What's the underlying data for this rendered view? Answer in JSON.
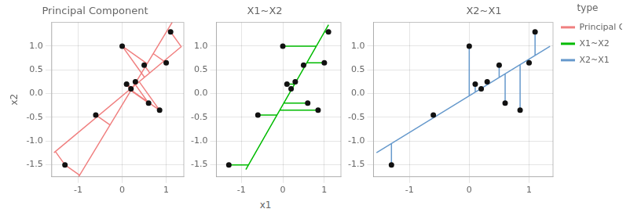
{
  "chart_data": [
    {
      "type": "scatter",
      "title": "Principal Component",
      "ylabel": "x2",
      "xlim": [
        -1.6,
        1.4
      ],
      "ylim": [
        -1.75,
        1.5
      ],
      "xticks": [
        -1,
        0,
        1
      ],
      "yticks": [
        -1.5,
        {
          "value": -1.0,
          "label": "-1.0"
        },
        -0.5,
        {
          "value": 0.0,
          "label": "0.0"
        },
        0.5,
        {
          "value": 1.0,
          "label": "1.0"
        }
      ],
      "grid": true,
      "series": [
        {
          "name": "Principal Component",
          "type": "line",
          "color": "#F08080",
          "x": [
            -1.55,
            1.35,
            null,
            -0.98801,
            1.13472,
            null,
            -1.3,
            -1.51675,
            null,
            -1.3,
            -0.96685,
            null,
            -0.6,
            -0.57039,
            null,
            -0.6,
            -0.2768,
            null,
            0,
            0.50687,
            null,
            0,
            0.56648,
            null,
            0.1,
            0.18245,
            null,
            0.1,
            0.23012,
            null,
            0.2,
            0.1967,
            null,
            0.2,
            0.21424,
            null,
            0.3,
            0.33189,
            null,
            0.3,
            0.31282,
            null,
            0.5,
            0.62647,
            null,
            0.5,
            0.53286,
            null,
            0.6,
            0.30205,
            null,
            0.6,
            0.1965,
            null,
            0.85,
            0.38604,
            null,
            0.85,
            0.20258,
            null,
            1.0,
            0.96378,
            null,
            1.0,
            0.70527,
            null,
            1.1,
            1.34087,
            null,
            1.1,
            1.03277
          ],
          "values": [
            -1.24513,
            0.99526,
            null,
            -1.75,
            1.5,
            null,
            -1.5,
            -1.21944,
            null,
            -1.5,
            -1.7176,
            null,
            -0.45,
            -0.48833,
            null,
            -0.45,
            -0.6611,
            null,
            1.0,
            0.3439,
            null,
            1.0,
            0.63,
            null,
            0.2,
            0.09327,
            null,
            0.2,
            0.11501,
            null,
            0.1,
            0.10428,
            null,
            0.1,
            0.0907,
            null,
            0.25,
            0.20872,
            null,
            0.25,
            0.24163,
            null,
            0.6,
            0.4363,
            null,
            0.6,
            0.57853,
            null,
            -0.2,
            0.18567,
            null,
            -0.2,
            0.06354,
            null,
            -0.35,
            0.25055,
            null,
            -0.35,
            0.07286,
            null,
            0.65,
            0.69688,
            null,
            0.65,
            0.8425,
            null,
            1.3,
            0.98821,
            null,
            1.3,
            1.34391
          ]
        },
        {
          "type": "scatter",
          "color": "#111111",
          "marker": "circle",
          "x": [
            -1.3,
            -0.6,
            0.0,
            0.1,
            0.2,
            0.3,
            0.5,
            0.6,
            0.85,
            1.0,
            1.1
          ],
          "values": [
            -1.5,
            -0.45,
            1.0,
            0.2,
            0.1,
            0.25,
            0.6,
            -0.2,
            -0.35,
            0.65,
            1.3
          ]
        }
      ]
    },
    {
      "type": "scatter",
      "title": "X1~X2",
      "xlabel": "x1",
      "xlim": [
        -1.6,
        1.4
      ],
      "ylim": [
        -1.75,
        1.5
      ],
      "xticks": [
        -1,
        0,
        1
      ],
      "yticks": [
        -1.5,
        {
          "value": -1.0,
          "label": "-1.0"
        },
        -0.5,
        {
          "value": 0.0,
          "label": "0.0"
        },
        0.5,
        {
          "value": 1.0,
          "label": "1.0"
        }
      ],
      "grid": true,
      "series": [
        {
          "name": "X1~X2",
          "type": "line",
          "color": "#00BB00",
          "x": [
            -0.89004,
            1.10206,
            null,
            -0.82472,
            -1.3,
            null,
            -0.13892,
            -0.6,
            null,
            0.80814,
            0,
            null,
            0.28563,
            0.1,
            null,
            0.22031,
            0.2,
            null,
            0.31828,
            0.3,
            null,
            0.54688,
            0.5,
            null,
            0.02437,
            0.6,
            null,
            -0.0736,
            0.85,
            null,
            0.57954,
            1.0,
            null,
            1.00409,
            1.1
          ],
          "values": [
            -1.6,
            1.45,
            null,
            -1.5,
            -1.5,
            null,
            -0.45,
            -0.45,
            null,
            1.0,
            1.0,
            null,
            0.2,
            0.2,
            null,
            0.1,
            0.1,
            null,
            0.25,
            0.25,
            null,
            0.6,
            0.6,
            null,
            -0.2,
            -0.2,
            null,
            -0.35,
            -0.35,
            null,
            0.65,
            0.65,
            null,
            1.3,
            1.3
          ]
        },
        {
          "type": "scatter",
          "color": "#111111",
          "marker": "circle",
          "x": [
            -1.3,
            -0.6,
            0.0,
            0.1,
            0.2,
            0.3,
            0.5,
            0.6,
            0.85,
            1.0,
            1.1
          ],
          "values": [
            -1.5,
            -0.45,
            1.0,
            0.2,
            0.1,
            0.25,
            0.6,
            -0.2,
            -0.35,
            0.65,
            1.3
          ]
        }
      ]
    },
    {
      "type": "scatter",
      "title": "X2~X1",
      "legend": "right",
      "legend_title": "type",
      "xlim": [
        -1.6,
        1.4
      ],
      "ylim": [
        -1.75,
        1.5
      ],
      "xticks": [
        -1,
        0,
        1
      ],
      "yticks": [
        -1.5,
        {
          "value": -1.0,
          "label": "-1.0"
        },
        -0.5,
        {
          "value": 0.0,
          "label": "0.0"
        },
        0.5,
        {
          "value": 1.0,
          "label": "1.0"
        }
      ],
      "grid": true,
      "series": [
        {
          "name": "X2~X1",
          "type": "line",
          "color": "#6699CC",
          "x": [
            -1.55,
            1.35,
            null,
            -1.3,
            -1.3,
            null,
            -0.6,
            -0.6,
            null,
            0,
            0,
            null,
            0.1,
            0.1,
            null,
            0.2,
            0.2,
            null,
            0.3,
            0.3,
            null,
            0.5,
            0.5,
            null,
            0.6,
            0.6,
            null,
            0.85,
            0.85,
            null,
            1.0,
            1.0,
            null,
            1.1,
            1.1
          ],
          "values": [
            -1.24513,
            0.99526,
            null,
            -1.5,
            -1.05199,
            null,
            -0.45,
            -0.51121,
            null,
            1.0,
            -0.04768,
            null,
            0.2,
            0.02957,
            null,
            0.1,
            0.10683,
            null,
            0.25,
            0.18408,
            null,
            0.6,
            0.33859,
            null,
            -0.2,
            0.41585,
            null,
            -0.35,
            0.60898,
            null,
            0.65,
            0.72486,
            null,
            1.3,
            0.80212
          ]
        },
        {
          "type": "scatter",
          "color": "#111111",
          "marker": "circle",
          "x": [
            -1.3,
            -0.6,
            0.0,
            0.1,
            0.2,
            0.3,
            0.5,
            0.6,
            0.85,
            1.0,
            1.1
          ],
          "values": [
            -1.5,
            -0.45,
            1.0,
            0.2,
            0.1,
            0.25,
            0.6,
            -0.2,
            -0.35,
            0.65,
            1.3
          ]
        }
      ]
    }
  ]
}
